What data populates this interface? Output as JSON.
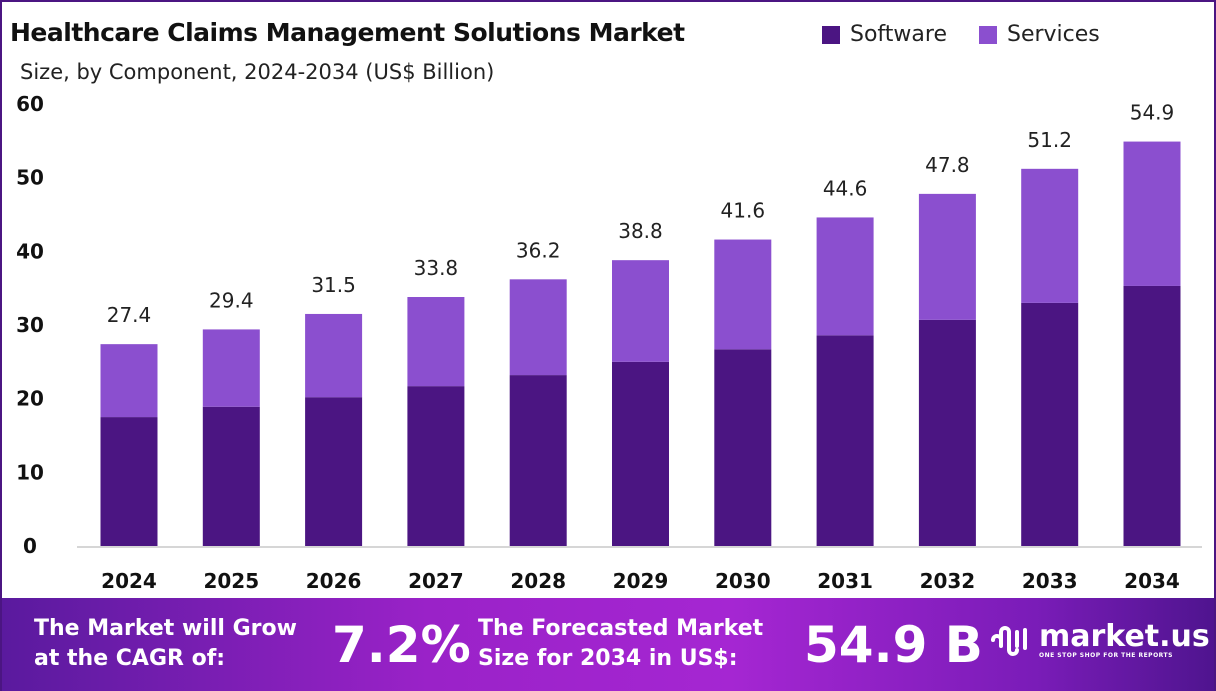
{
  "chart_data": {
    "type": "bar",
    "stacked": true,
    "title": "Healthcare Claims Management Solutions Market",
    "subtitle": "Size, by Component, 2024-2034 (US$ Billion)",
    "categories": [
      "2024",
      "2025",
      "2026",
      "2027",
      "2028",
      "2029",
      "2030",
      "2031",
      "2032",
      "2033",
      "2034"
    ],
    "series": [
      {
        "name": "Software",
        "color": "#4b1582",
        "values": [
          17.5,
          18.9,
          20.2,
          21.7,
          23.2,
          25.0,
          26.7,
          28.6,
          30.7,
          33.0,
          35.3
        ]
      },
      {
        "name": "Services",
        "color": "#8b4fcf",
        "values": [
          9.9,
          10.5,
          11.3,
          12.1,
          13.0,
          13.8,
          14.9,
          16.0,
          17.1,
          18.2,
          19.6
        ]
      }
    ],
    "totals": [
      "27.4",
      "29.4",
      "31.5",
      "33.8",
      "36.2",
      "38.8",
      "41.6",
      "44.6",
      "47.8",
      "51.2",
      "54.9"
    ],
    "yticks": [
      "0",
      "10",
      "20",
      "30",
      "40",
      "50",
      "60"
    ],
    "ylim": [
      0,
      60
    ],
    "grid": false,
    "legend_position": "top-right"
  },
  "footer": {
    "cagr_line1": "The Market will Grow",
    "cagr_line2": "at the CAGR of:",
    "cagr_value": "7.2%",
    "forecast_line1": "The Forecasted Market",
    "forecast_line2": "Size for 2034 in US$:",
    "forecast_value": "54.9 B",
    "logo_name": "market.us",
    "logo_tagline": "ONE STOP SHOP FOR THE REPORTS"
  }
}
